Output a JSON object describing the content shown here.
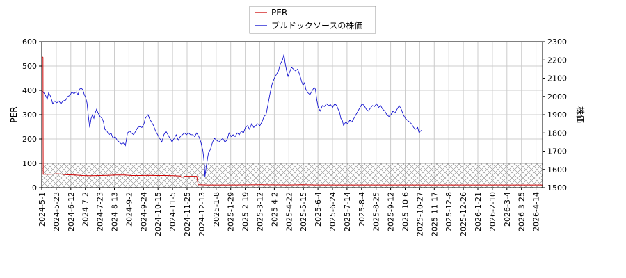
{
  "chart_data": {
    "type": "line",
    "title": "",
    "legend": {
      "placement": "top-center"
    },
    "grid": true,
    "x_tick_labels": [
      "2024-5-1",
      "2024-5-23",
      "2024-6-12",
      "2024-7-2",
      "2024-7-23",
      "2024-8-13",
      "2024-9-2",
      "2024-9-24",
      "2024-10-15",
      "2024-11-5",
      "2024-11-25",
      "2024-12-13",
      "2025-1-8",
      "2025-1-29",
      "2025-2-19",
      "2025-3-12",
      "2025-4-2",
      "2025-4-22",
      "2025-5-15",
      "2025-6-4",
      "2025-6-24",
      "2025-7-14",
      "2025-8-4",
      "2025-8-25",
      "2025-9-12",
      "2025-10-6",
      "2025-10-27",
      "2025-11-17",
      "2025-12-8",
      "2025-12-26",
      "2026-1-21",
      "2026-2-10",
      "2026-3-4",
      "2026-3-25",
      "2026-4-14"
    ],
    "y_left": {
      "label": "PER",
      "min": 0,
      "max": 600,
      "ticks": [
        0,
        100,
        200,
        300,
        400,
        500,
        600
      ]
    },
    "y_right": {
      "label": "株価",
      "min": 1500,
      "max": 2300,
      "ticks": [
        1500,
        1600,
        1700,
        1800,
        1900,
        2000,
        2100,
        2200,
        2300
      ]
    },
    "hatch_band": {
      "axis": "left",
      "from": 0,
      "to": 100
    },
    "series": [
      {
        "name": "PER",
        "axis": "left",
        "color": "#cc0000",
        "points": [
          [
            0,
            550
          ],
          [
            0.6,
            540
          ],
          [
            1.2,
            535
          ],
          [
            1.8,
            535
          ],
          [
            2.0,
            175
          ],
          [
            2.1,
            55
          ],
          [
            6,
            55
          ],
          [
            12,
            55
          ],
          [
            18,
            56
          ],
          [
            24,
            57
          ],
          [
            30,
            55
          ],
          [
            36,
            53
          ],
          [
            48,
            52
          ],
          [
            60,
            50
          ],
          [
            72,
            49
          ],
          [
            84,
            50
          ],
          [
            96,
            51
          ],
          [
            108,
            52
          ],
          [
            120,
            52
          ],
          [
            132,
            50
          ],
          [
            144,
            50
          ],
          [
            156,
            51
          ],
          [
            168,
            50
          ],
          [
            180,
            50
          ],
          [
            192,
            49
          ],
          [
            202,
            48
          ],
          [
            204,
            42
          ],
          [
            208,
            47
          ],
          [
            218,
            47
          ],
          [
            226,
            47
          ],
          [
            228,
            12
          ],
          [
            240,
            11
          ],
          [
            280,
            11
          ],
          [
            320,
            12
          ],
          [
            360,
            11
          ],
          [
            380,
            12
          ],
          [
            400,
            11
          ],
          [
            420,
            11
          ],
          [
            440,
            11
          ],
          [
            470,
            11
          ],
          [
            500,
            11
          ],
          [
            520,
            11
          ],
          [
            540,
            11
          ],
          [
            560,
            11
          ],
          [
            580,
            11
          ],
          [
            600,
            11
          ],
          [
            620,
            11
          ],
          [
            640,
            11
          ],
          [
            660,
            11
          ],
          [
            680,
            11
          ],
          [
            700,
            11
          ],
          [
            720,
            11
          ],
          [
            730,
            11
          ]
        ]
      },
      {
        "name": "ブルドックソースの株価",
        "axis": "right",
        "color": "#0000cc",
        "points": [
          [
            0,
            2030
          ],
          [
            2,
            2025
          ],
          [
            5,
            2010
          ],
          [
            8,
            1985
          ],
          [
            10,
            2020
          ],
          [
            13,
            2000
          ],
          [
            16,
            1960
          ],
          [
            19,
            1975
          ],
          [
            22,
            1965
          ],
          [
            25,
            1975
          ],
          [
            28,
            1960
          ],
          [
            31,
            1975
          ],
          [
            35,
            1980
          ],
          [
            38,
            2000
          ],
          [
            41,
            2005
          ],
          [
            44,
            2025
          ],
          [
            47,
            2015
          ],
          [
            50,
            2025
          ],
          [
            53,
            2010
          ],
          [
            55,
            2040
          ],
          [
            58,
            2045
          ],
          [
            60,
            2035
          ],
          [
            62,
            2010
          ],
          [
            64,
            1995
          ],
          [
            66,
            1965
          ],
          [
            68,
            1890
          ],
          [
            70,
            1830
          ],
          [
            72,
            1880
          ],
          [
            74,
            1900
          ],
          [
            76,
            1880
          ],
          [
            78,
            1910
          ],
          [
            80,
            1930
          ],
          [
            82,
            1910
          ],
          [
            85,
            1890
          ],
          [
            88,
            1880
          ],
          [
            90,
            1860
          ],
          [
            92,
            1820
          ],
          [
            95,
            1810
          ],
          [
            98,
            1790
          ],
          [
            101,
            1800
          ],
          [
            104,
            1770
          ],
          [
            107,
            1780
          ],
          [
            110,
            1760
          ],
          [
            113,
            1750
          ],
          [
            116,
            1740
          ],
          [
            119,
            1745
          ],
          [
            122,
            1730
          ],
          [
            125,
            1800
          ],
          [
            128,
            1810
          ],
          [
            131,
            1800
          ],
          [
            134,
            1790
          ],
          [
            137,
            1810
          ],
          [
            140,
            1830
          ],
          [
            143,
            1835
          ],
          [
            146,
            1830
          ],
          [
            149,
            1850
          ],
          [
            151,
            1880
          ],
          [
            153,
            1890
          ],
          [
            155,
            1900
          ],
          [
            157,
            1880
          ],
          [
            160,
            1860
          ],
          [
            163,
            1840
          ],
          [
            166,
            1810
          ],
          [
            169,
            1790
          ],
          [
            172,
            1770
          ],
          [
            175,
            1750
          ],
          [
            178,
            1790
          ],
          [
            181,
            1810
          ],
          [
            184,
            1790
          ],
          [
            187,
            1770
          ],
          [
            190,
            1750
          ],
          [
            193,
            1770
          ],
          [
            196,
            1790
          ],
          [
            199,
            1760
          ],
          [
            202,
            1780
          ],
          [
            205,
            1790
          ],
          [
            208,
            1800
          ],
          [
            211,
            1790
          ],
          [
            214,
            1800
          ],
          [
            217,
            1790
          ],
          [
            220,
            1790
          ],
          [
            223,
            1780
          ],
          [
            226,
            1800
          ],
          [
            229,
            1780
          ],
          [
            232,
            1750
          ],
          [
            235,
            1700
          ],
          [
            237,
            1630
          ],
          [
            238,
            1560
          ],
          [
            240,
            1620
          ],
          [
            243,
            1690
          ],
          [
            246,
            1710
          ],
          [
            249,
            1750
          ],
          [
            252,
            1770
          ],
          [
            255,
            1760
          ],
          [
            258,
            1750
          ],
          [
            261,
            1760
          ],
          [
            264,
            1770
          ],
          [
            267,
            1750
          ],
          [
            270,
            1760
          ],
          [
            273,
            1800
          ],
          [
            276,
            1780
          ],
          [
            279,
            1790
          ],
          [
            282,
            1780
          ],
          [
            285,
            1800
          ],
          [
            288,
            1790
          ],
          [
            291,
            1810
          ],
          [
            294,
            1800
          ],
          [
            297,
            1830
          ],
          [
            300,
            1840
          ],
          [
            303,
            1820
          ],
          [
            306,
            1850
          ],
          [
            309,
            1830
          ],
          [
            312,
            1840
          ],
          [
            315,
            1850
          ],
          [
            318,
            1840
          ],
          [
            321,
            1860
          ],
          [
            324,
            1890
          ],
          [
            327,
            1900
          ],
          [
            330,
            1960
          ],
          [
            333,
            2020
          ],
          [
            336,
            2070
          ],
          [
            339,
            2100
          ],
          [
            342,
            2120
          ],
          [
            345,
            2140
          ],
          [
            348,
            2180
          ],
          [
            351,
            2200
          ],
          [
            353,
            2230
          ],
          [
            355,
            2180
          ],
          [
            357,
            2140
          ],
          [
            359,
            2110
          ],
          [
            361,
            2130
          ],
          [
            364,
            2160
          ],
          [
            367,
            2150
          ],
          [
            370,
            2140
          ],
          [
            373,
            2150
          ],
          [
            376,
            2120
          ],
          [
            379,
            2080
          ],
          [
            381,
            2060
          ],
          [
            383,
            2075
          ],
          [
            385,
            2040
          ],
          [
            388,
            2020
          ],
          [
            391,
            2010
          ],
          [
            394,
            2030
          ],
          [
            397,
            2050
          ],
          [
            399,
            2040
          ],
          [
            401,
            1980
          ],
          [
            403,
            1940
          ],
          [
            406,
            1920
          ],
          [
            409,
            1950
          ],
          [
            412,
            1945
          ],
          [
            415,
            1960
          ],
          [
            418,
            1950
          ],
          [
            421,
            1955
          ],
          [
            424,
            1940
          ],
          [
            427,
            1960
          ],
          [
            430,
            1950
          ],
          [
            432,
            1930
          ],
          [
            434,
            1915
          ],
          [
            436,
            1880
          ],
          [
            438,
            1870
          ],
          [
            440,
            1840
          ],
          [
            443,
            1860
          ],
          [
            446,
            1850
          ],
          [
            449,
            1870
          ],
          [
            452,
            1860
          ],
          [
            455,
            1880
          ],
          [
            458,
            1900
          ],
          [
            461,
            1920
          ],
          [
            464,
            1940
          ],
          [
            467,
            1960
          ],
          [
            470,
            1950
          ],
          [
            473,
            1930
          ],
          [
            476,
            1920
          ],
          [
            479,
            1935
          ],
          [
            482,
            1950
          ],
          [
            485,
            1945
          ],
          [
            488,
            1960
          ],
          [
            491,
            1940
          ],
          [
            494,
            1950
          ],
          [
            497,
            1930
          ],
          [
            500,
            1920
          ],
          [
            503,
            1900
          ],
          [
            506,
            1890
          ],
          [
            509,
            1900
          ],
          [
            512,
            1920
          ],
          [
            515,
            1910
          ],
          [
            518,
            1930
          ],
          [
            521,
            1950
          ],
          [
            524,
            1930
          ],
          [
            527,
            1900
          ],
          [
            530,
            1880
          ],
          [
            533,
            1870
          ],
          [
            536,
            1860
          ],
          [
            539,
            1850
          ],
          [
            542,
            1830
          ],
          [
            545,
            1820
          ],
          [
            548,
            1830
          ],
          [
            550,
            1800
          ],
          [
            552,
            1810
          ],
          [
            554,
            1815
          ]
        ]
      }
    ]
  }
}
